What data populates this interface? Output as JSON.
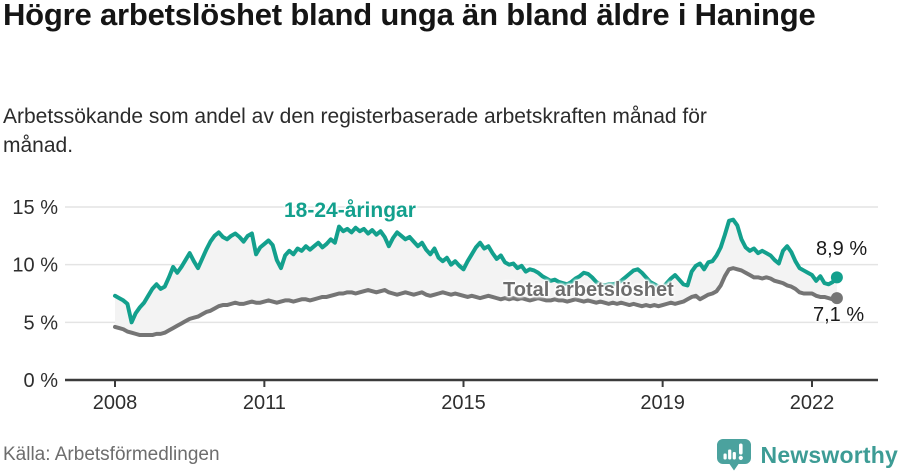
{
  "header": {
    "title": "Högre arbetslöshet bland unga än bland äldre i Haninge",
    "subtitle": "Arbetssökande som andel av den registerbaserade arbetskraften månad för månad."
  },
  "footer": {
    "source": "Källa: Arbetsförmedlingen",
    "brand": "Newsworthy"
  },
  "colors": {
    "young_line": "#13a08d",
    "total_line": "#757575",
    "fill_between": "#f3f3f3",
    "gridline": "#e4e4e4",
    "axis": "#3b3b3b",
    "tick_text": "#2e2e2e",
    "brand_teal": "#4ba29e"
  },
  "chart_data": {
    "type": "line",
    "title": "Högre arbetslöshet bland unga än bland äldre i Haninge",
    "subtitle": "Arbetssökande som andel av den registerbaserade arbetskraften månad för månad.",
    "x_unit": "month",
    "x_range": "2008-01 to 2022-07",
    "grid": "horizontal",
    "legend_position": "inline-annotations",
    "ylim": [
      0,
      16.9
    ],
    "x_ticks": [
      {
        "label": "2008",
        "month_index": 0
      },
      {
        "label": "2011",
        "month_index": 36
      },
      {
        "label": "2015",
        "month_index": 84
      },
      {
        "label": "2019",
        "month_index": 132
      },
      {
        "label": "2022",
        "month_index": 168
      }
    ],
    "y_ticks": [
      {
        "label": "0 %",
        "value": 0
      },
      {
        "label": "5 %",
        "value": 5
      },
      {
        "label": "10 %",
        "value": 10
      },
      {
        "label": "15 %",
        "value": 15
      }
    ],
    "fill_between_series": "#f3f3f3",
    "series": [
      {
        "name": "18-24-åringar",
        "color": "#13a08d",
        "end_label": "8,9 %",
        "end_value": 8.9,
        "values": [
          7.3,
          7.1,
          6.9,
          6.6,
          5.0,
          5.8,
          6.3,
          6.7,
          7.3,
          7.9,
          8.3,
          7.9,
          8.1,
          8.9,
          9.8,
          9.3,
          9.8,
          10.4,
          11.0,
          10.3,
          9.7,
          10.5,
          11.3,
          12.0,
          12.5,
          12.8,
          12.4,
          12.2,
          12.5,
          12.7,
          12.4,
          12.0,
          12.5,
          12.7,
          10.9,
          11.5,
          11.8,
          12.1,
          11.7,
          10.4,
          9.7,
          10.8,
          11.2,
          10.9,
          11.4,
          11.2,
          11.6,
          11.3,
          11.6,
          11.9,
          11.5,
          11.8,
          12.2,
          11.9,
          13.3,
          12.9,
          13.1,
          12.8,
          13.2,
          12.9,
          13.1,
          12.7,
          13.0,
          12.6,
          12.9,
          12.4,
          11.6,
          12.3,
          12.8,
          12.5,
          12.2,
          12.4,
          12.0,
          11.6,
          11.9,
          11.3,
          10.9,
          11.4,
          10.6,
          10.3,
          10.6,
          10.0,
          10.3,
          9.9,
          9.6,
          10.3,
          10.9,
          11.5,
          11.9,
          11.4,
          11.6,
          11.0,
          10.5,
          10.8,
          10.2,
          10.0,
          10.1,
          9.7,
          9.9,
          9.4,
          9.6,
          9.5,
          9.3,
          9.0,
          8.8,
          8.6,
          8.7,
          8.5,
          8.4,
          8.3,
          8.5,
          8.8,
          9.0,
          9.3,
          9.2,
          8.9,
          8.5,
          8.3,
          8.2,
          8.3,
          8.3,
          8.4,
          8.6,
          8.9,
          9.2,
          9.5,
          9.6,
          9.3,
          8.9,
          8.5,
          8.3,
          8.1,
          8.0,
          8.4,
          8.8,
          9.1,
          8.7,
          8.3,
          8.2,
          9.4,
          9.9,
          10.1,
          9.6,
          10.2,
          10.3,
          10.8,
          11.5,
          12.6,
          13.8,
          13.9,
          13.4,
          12.2,
          11.5,
          11.2,
          11.4,
          11.0,
          11.2,
          11.0,
          10.8,
          10.4,
          10.1,
          11.2,
          11.6,
          11.1,
          10.3,
          9.7,
          9.5,
          9.3,
          9.1,
          8.6,
          9.0,
          8.4,
          8.3,
          8.5,
          8.9
        ]
      },
      {
        "name": "Total arbetslöshet",
        "color": "#757575",
        "end_label": "7,1 %",
        "end_value": 7.1,
        "values": [
          4.6,
          4.5,
          4.4,
          4.2,
          4.1,
          4.0,
          3.9,
          3.9,
          3.9,
          3.9,
          4.0,
          4.0,
          4.1,
          4.3,
          4.5,
          4.7,
          4.9,
          5.1,
          5.3,
          5.4,
          5.5,
          5.7,
          5.9,
          6.0,
          6.2,
          6.4,
          6.5,
          6.5,
          6.6,
          6.7,
          6.6,
          6.6,
          6.7,
          6.8,
          6.7,
          6.7,
          6.8,
          6.9,
          6.8,
          6.7,
          6.8,
          6.9,
          6.9,
          6.8,
          6.9,
          7.0,
          7.0,
          6.9,
          7.0,
          7.1,
          7.2,
          7.2,
          7.3,
          7.4,
          7.5,
          7.5,
          7.6,
          7.6,
          7.5,
          7.6,
          7.7,
          7.8,
          7.7,
          7.6,
          7.7,
          7.8,
          7.6,
          7.5,
          7.4,
          7.5,
          7.6,
          7.5,
          7.4,
          7.5,
          7.6,
          7.4,
          7.3,
          7.4,
          7.5,
          7.6,
          7.5,
          7.4,
          7.5,
          7.4,
          7.3,
          7.2,
          7.3,
          7.2,
          7.1,
          7.2,
          7.3,
          7.2,
          7.1,
          7.0,
          7.1,
          7.0,
          7.1,
          7.0,
          7.1,
          7.0,
          6.9,
          7.0,
          7.1,
          7.0,
          6.9,
          6.9,
          7.0,
          6.9,
          6.9,
          6.8,
          6.9,
          7.0,
          6.9,
          6.8,
          6.9,
          6.8,
          6.7,
          6.8,
          6.7,
          6.6,
          6.7,
          6.6,
          6.7,
          6.6,
          6.5,
          6.6,
          6.5,
          6.4,
          6.5,
          6.4,
          6.5,
          6.4,
          6.5,
          6.6,
          6.7,
          6.6,
          6.7,
          6.8,
          7.0,
          7.2,
          7.3,
          7.0,
          7.2,
          7.4,
          7.5,
          7.7,
          8.2,
          9.0,
          9.6,
          9.7,
          9.6,
          9.5,
          9.3,
          9.1,
          8.9,
          8.9,
          8.8,
          8.9,
          8.8,
          8.6,
          8.5,
          8.4,
          8.2,
          8.1,
          7.9,
          7.6,
          7.5,
          7.5,
          7.5,
          7.3,
          7.2,
          7.2,
          7.1,
          7.0,
          7.1
        ]
      }
    ]
  }
}
